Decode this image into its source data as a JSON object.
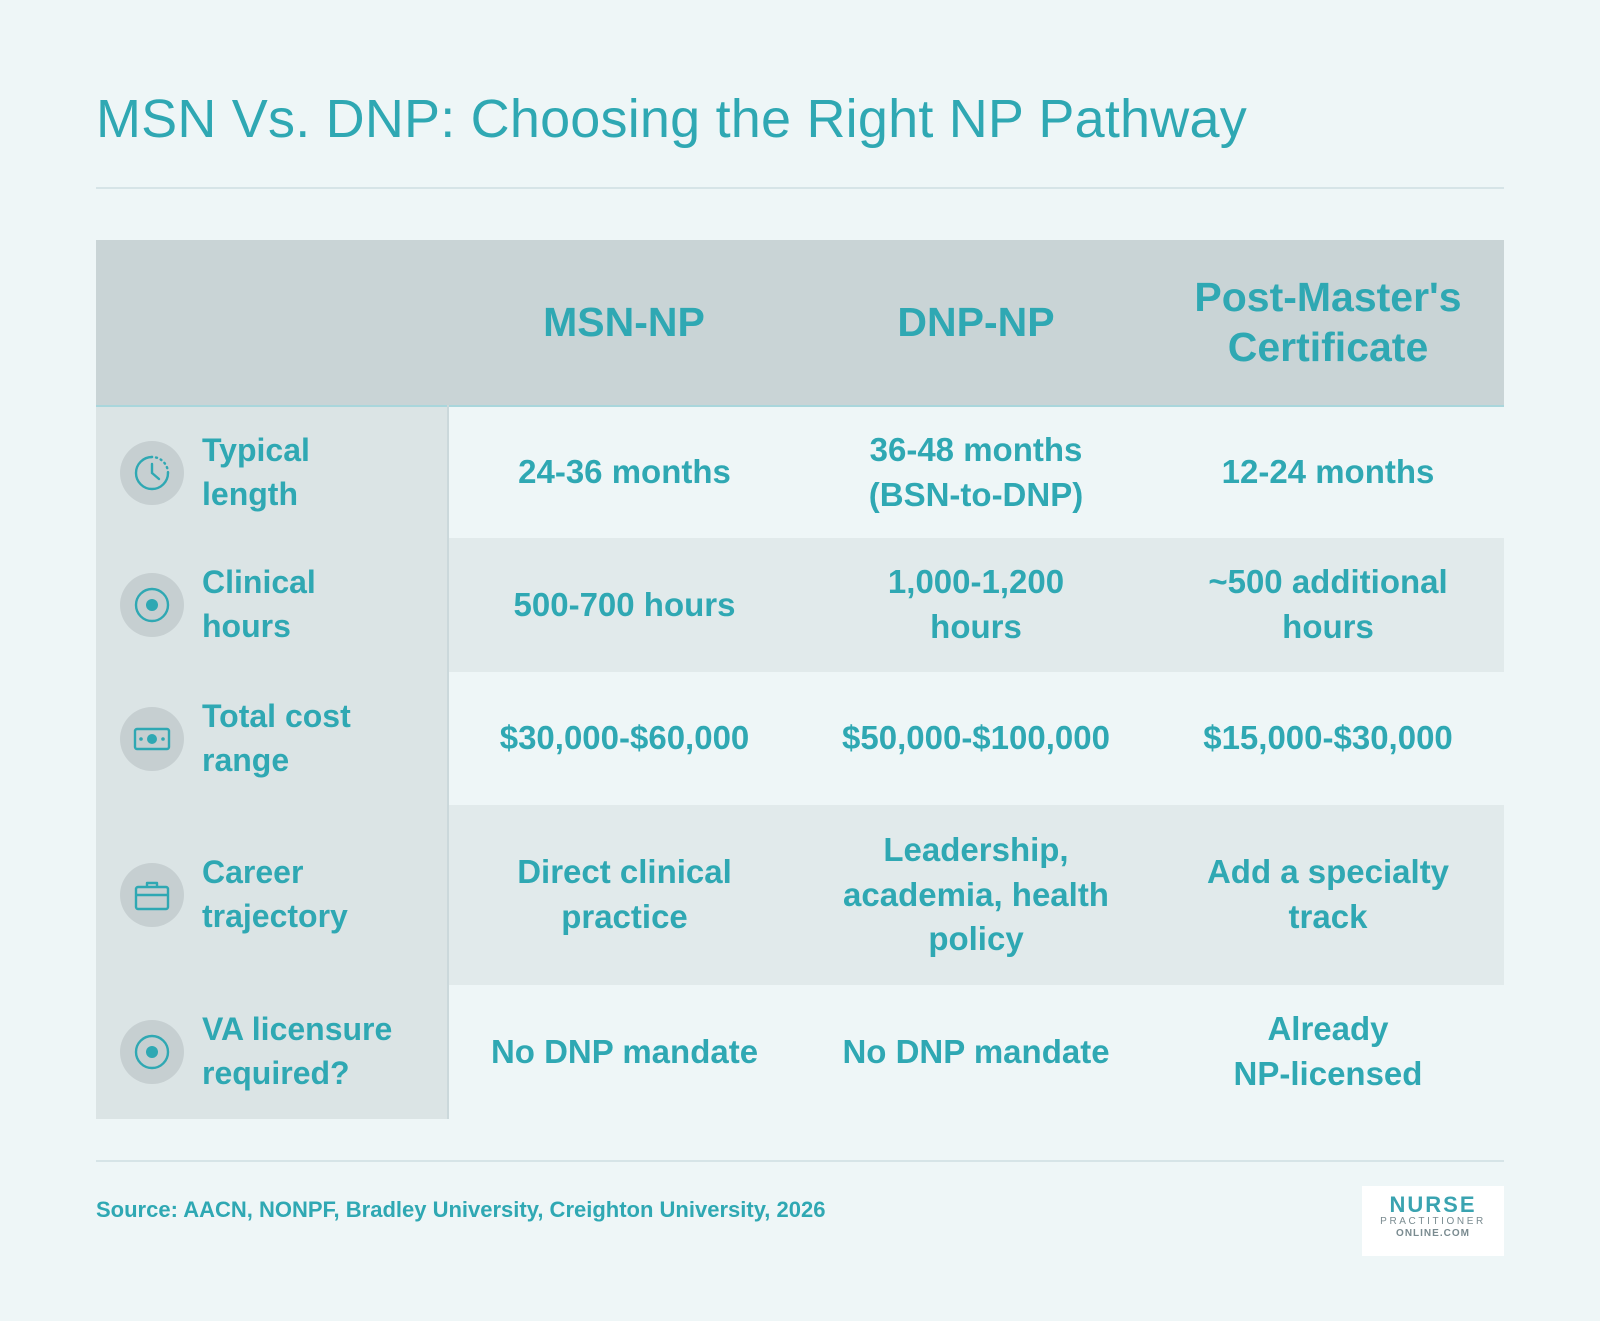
{
  "title": "MSN Vs. DNP: Choosing the Right NP Pathway",
  "table": {
    "columns": [
      "MSN-NP",
      "DNP-NP",
      "Post-Master's\nCertificate"
    ],
    "rows": [
      {
        "icon": "clock-icon",
        "label": "Typical\nlength",
        "values": [
          "24-36 months",
          "36-48 months\n(BSN-to-DNP)",
          "12-24 months"
        ]
      },
      {
        "icon": "target-icon",
        "label": "Clinical\nhours",
        "values": [
          "500-700 hours",
          "1,000-1,200\nhours",
          "~500 additional\nhours"
        ]
      },
      {
        "icon": "money-icon",
        "label": "Total cost\nrange",
        "values": [
          "$30,000-$60,000",
          "$50,000-$100,000",
          "$15,000-$30,000"
        ]
      },
      {
        "icon": "briefcase-icon",
        "label": "Career\ntrajectory",
        "values": [
          "Direct clinical\npractice",
          "Leadership,\nacademia, health\npolicy",
          "Add a specialty\ntrack"
        ]
      },
      {
        "icon": "target-icon",
        "label": "VA licensure\nrequired?",
        "values": [
          "No DNP mandate",
          "No DNP mandate",
          "Already\nNP-licensed"
        ]
      }
    ]
  },
  "source": "Source: AACN, NONPF, Bradley University, Creighton University, 2026",
  "logo": {
    "line1": "NURSE",
    "line2": "PRACTITIONER",
    "line3": "ONLINE.COM"
  },
  "colors": {
    "accent": "#2fa8b3",
    "background": "#eef6f7",
    "header": "#c9d4d6",
    "shaded_row": "#e1eaeb",
    "label_column": "#dbe4e5"
  }
}
